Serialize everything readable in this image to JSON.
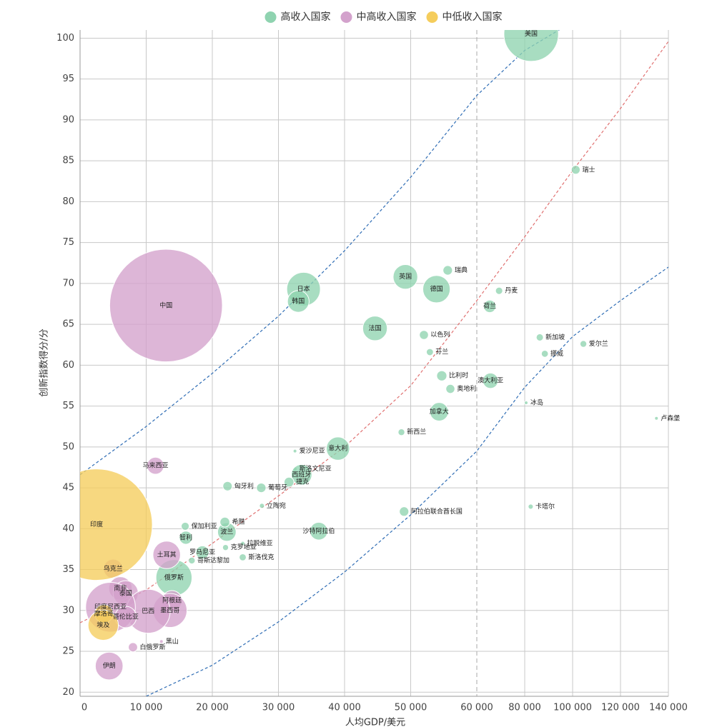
{
  "chart_data": {
    "type": "bubble",
    "x_label": "人均GDP/美元",
    "y_label": "创新指数得分/分",
    "xlim": [
      0,
      140000
    ],
    "ylim": [
      19.5,
      101
    ],
    "x_scale_break": 60000,
    "xticks": [
      0,
      {
        "value": 10000,
        "label": "10 000"
      },
      {
        "value": 20000,
        "label": "20 000"
      },
      {
        "value": 30000,
        "label": "30 000"
      },
      {
        "value": 40000,
        "label": "40 000"
      },
      {
        "value": 50000,
        "label": "50 000"
      },
      {
        "value": 60000,
        "label": "60 000"
      },
      {
        "value": 80000,
        "label": "80 000"
      },
      {
        "value": 100000,
        "label": "100 000"
      },
      {
        "value": 120000,
        "label": "120 000"
      },
      {
        "value": 140000,
        "label": "140 000"
      }
    ],
    "yticks": [
      20,
      25,
      30,
      35,
      40,
      45,
      50,
      55,
      60,
      65,
      70,
      75,
      80,
      85,
      90,
      95,
      100
    ],
    "grid": true,
    "legend": "top",
    "series": [
      {
        "name": "高收入国家",
        "color": "#8fd3b0",
        "labels": [
          "美国",
          "瑞士",
          "瑞典",
          "英国",
          "德国",
          "丹麦",
          "日本",
          "韩国",
          "荷兰",
          "法国",
          "以色列",
          "新加坡",
          "爱尔兰",
          "挪威",
          "芬兰",
          "比利时",
          "澳大利亚",
          "奥地利",
          "冰岛",
          "加拿大",
          "卢森堡",
          "新西兰",
          "意大利",
          "爱沙尼亚",
          "斯洛文尼亚",
          "西班牙",
          "葡萄牙",
          "捷克",
          "匈牙利",
          "立陶宛",
          "阿拉伯联合酋长国",
          "卡塔尔",
          "沙特阿拉伯",
          "波兰",
          "希腊",
          "拉脱维亚",
          "克罗地亚",
          "斯洛伐克",
          "智利",
          "罗马尼亚",
          "哥斯达黎加",
          "保加利亚",
          "俄罗斯"
        ],
        "x": [
          82700,
          101300,
          55600,
          49200,
          53900,
          69300,
          33800,
          33000,
          65400,
          44600,
          52000,
          86300,
          104500,
          88400,
          52900,
          54700,
          65700,
          56000,
          80600,
          54300,
          135000,
          48600,
          39000,
          32500,
          32500,
          33500,
          27400,
          31600,
          22300,
          27500,
          49000,
          82500,
          36100,
          22200,
          21900,
          24600,
          22000,
          24600,
          16000,
          18500,
          16900,
          15900,
          14200
        ],
        "values": [
          100.5,
          83.9,
          71.6,
          70.8,
          69.3,
          69.1,
          69.3,
          67.8,
          67.2,
          64.5,
          63.7,
          63.4,
          62.6,
          61.4,
          61.6,
          58.7,
          58.1,
          57.1,
          55.4,
          54.3,
          53.5,
          51.8,
          49.8,
          49.5,
          47.3,
          46.6,
          45,
          45.7,
          45.2,
          42.8,
          42.1,
          42.7,
          39.7,
          39.6,
          40.8,
          38.2,
          37.7,
          36.5,
          38.9,
          37.1,
          36.1,
          40.3,
          34.0
        ],
        "sizes": [
          330,
          8.6,
          10,
          67,
          83,
          5.8,
          125,
          52,
          17,
          67,
          9,
          5.7,
          5,
          5.4,
          5.5,
          11.5,
          26,
          9,
          0.4,
          38,
          0.6,
          5,
          60,
          1.3,
          2.1,
          47,
          10,
          10.7,
          9.7,
          2.8,
          9.9,
          2.9,
          35,
          38,
          10.7,
          1.9,
          4,
          5.5,
          19,
          19,
          5,
          7,
          144
        ]
      },
      {
        "name": "中高收入国家",
        "color": "#d3a2cc",
        "labels": [
          "中国",
          "马来西亚",
          "土耳其",
          "乌克兰",
          "南非",
          "泰国",
          "阿根廷",
          "墨西哥",
          "巴西",
          "印度尼西亚",
          "哥伦比亚",
          "黑山",
          "白俄罗斯",
          "伊朗"
        ],
        "x": [
          13000,
          11400,
          13100,
          5000,
          6100,
          6900,
          13900,
          13600,
          10300,
          4600,
          6900,
          12300,
          8000,
          4400
        ],
        "values": [
          67.3,
          47.7,
          36.8,
          35.1,
          32.7,
          32.1,
          31.2,
          30.0,
          29.9,
          30.4,
          29.2,
          26.2,
          25.5,
          23.2
        ],
        "sizes": [
          1410,
          32,
          84,
          41,
          60,
          70,
          45,
          128,
          213,
          274,
          51,
          0.6,
          9.4,
          85
        ]
      },
      {
        "name": "中低收入国家",
        "color": "#f5cd5c",
        "labels": [
          "印度",
          "摩洛哥",
          "埃及"
        ],
        "x": [
          2500,
          3600,
          3500
        ],
        "values": [
          40.5,
          29.6,
          28.2
        ],
        "sizes": [
          1380,
          37,
          102
        ]
      }
    ],
    "trend_lines": [
      {
        "color": "#2f6db5",
        "x": [
          0,
          10000,
          20000,
          30000,
          40000,
          50000,
          60000,
          80000,
          100000
        ],
        "values": [
          46.6,
          52.5,
          59,
          66,
          74,
          83,
          93,
          98.5,
          102
        ]
      },
      {
        "color": "#e07070",
        "x": [
          0,
          10000,
          20000,
          30000,
          40000,
          50000,
          60000,
          80000,
          100000,
          120000,
          140000
        ],
        "values": [
          28.5,
          32.5,
          38.2,
          44,
          50,
          57.5,
          67.9,
          75.7,
          83.8,
          91.4,
          99.6
        ]
      },
      {
        "color": "#2f6db5",
        "x": [
          10000,
          20000,
          30000,
          40000,
          50000,
          60000,
          80000,
          100000,
          120000,
          140000
        ],
        "values": [
          19.5,
          23.3,
          28.6,
          34.7,
          41.7,
          49.5,
          57.3,
          63.5,
          67.9,
          72
        ]
      }
    ]
  }
}
